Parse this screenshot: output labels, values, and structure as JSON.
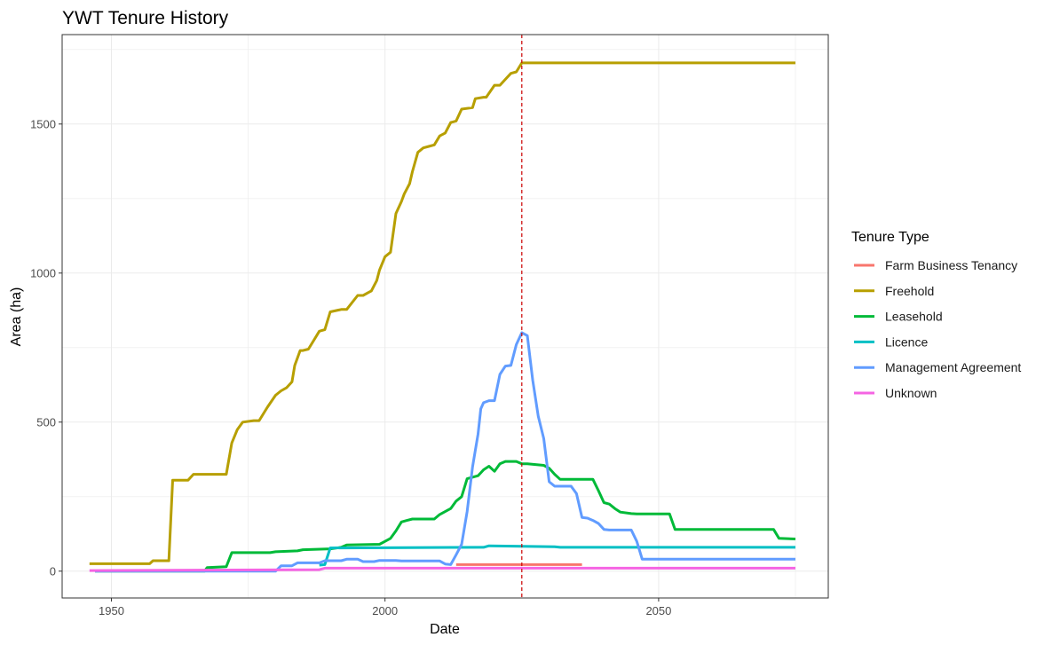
{
  "chart_data": {
    "type": "line",
    "title": "YWT Tenure History",
    "xlabel": "Date",
    "ylabel": "Area (ha)",
    "xlim": [
      1941,
      2081
    ],
    "ylim": [
      -90,
      1800
    ],
    "x_ticks": [
      1950,
      2000,
      2050
    ],
    "y_ticks": [
      0,
      500,
      1000,
      1500
    ],
    "grid": true,
    "legend_title": "Tenure Type",
    "legend_position": "right",
    "reference_line": {
      "x": 2025,
      "color": "#cc0000",
      "style": "dashed"
    },
    "series": [
      {
        "name": "Farm Business Tenancy",
        "color": "#F8766D",
        "step": true,
        "x": [
          2013,
          2036
        ],
        "y": [
          22,
          22
        ]
      },
      {
        "name": "Freehold",
        "color": "#B79F00",
        "step": false,
        "x": [
          1946,
          1957,
          1957.6,
          1960.5,
          1961.2,
          1964,
          1965,
          1971,
          1972,
          1973,
          1974,
          1976,
          1977,
          1978.5,
          1980,
          1981,
          1982,
          1983,
          1983.5,
          1984.5,
          1985,
          1986,
          1987,
          1988,
          1989,
          1990,
          1992,
          1993,
          1995,
          1996,
          1997,
          1997.5,
          1998.5,
          1999,
          2000,
          2001,
          2002,
          2003,
          2003.5,
          2004.5,
          2005,
          2006,
          2007,
          2008,
          2009,
          2010,
          2011,
          2012,
          2013,
          2014,
          2016,
          2016.5,
          2018,
          2018.5,
          2020,
          2021,
          2022,
          2023,
          2024,
          2025,
          2075
        ],
        "y": [
          25,
          25,
          35,
          35,
          305,
          305,
          325,
          325,
          430,
          475,
          500,
          505,
          505,
          550,
          590,
          605,
          615,
          635,
          690,
          740,
          740,
          745,
          775,
          805,
          810,
          870,
          878,
          878,
          925,
          925,
          935,
          940,
          975,
          1010,
          1055,
          1070,
          1200,
          1240,
          1265,
          1300,
          1340,
          1405,
          1420,
          1425,
          1430,
          1460,
          1470,
          1505,
          1510,
          1550,
          1555,
          1585,
          1590,
          1590,
          1630,
          1630,
          1650,
          1670,
          1675,
          1705,
          1705
        ]
      },
      {
        "name": "Leasehold",
        "color": "#00BA38",
        "step": false,
        "x": [
          1947,
          1967,
          1967.5,
          1971,
          1972,
          1979,
          1980,
          1984,
          1985,
          1990,
          1992,
          1993,
          1999,
          2000,
          2001,
          2002,
          2003,
          2004,
          2005,
          2009,
          2010,
          2011,
          2012,
          2013,
          2014,
          2015,
          2017,
          2017.5,
          2018,
          2019,
          2020,
          2021,
          2022,
          2024,
          2025,
          2026,
          2029,
          2030,
          2031,
          2032,
          2038,
          2039,
          2040,
          2041,
          2042,
          2043,
          2045,
          2046,
          2052,
          2053,
          2071,
          2072,
          2075
        ],
        "y": [
          0,
          0,
          12,
          15,
          62,
          62,
          65,
          68,
          72,
          75,
          80,
          88,
          90,
          100,
          110,
          135,
          165,
          170,
          175,
          175,
          190,
          200,
          210,
          235,
          250,
          310,
          320,
          330,
          340,
          352,
          335,
          360,
          368,
          368,
          360,
          360,
          355,
          345,
          325,
          308,
          308,
          270,
          230,
          225,
          210,
          198,
          193,
          192,
          192,
          140,
          140,
          110,
          108
        ]
      },
      {
        "name": "Licence",
        "color": "#00BFC4",
        "step": false,
        "x": [
          1988,
          1989,
          1990,
          2018,
          2019,
          2031,
          2032,
          2075
        ],
        "y": [
          20,
          22,
          78,
          80,
          85,
          82,
          80,
          80
        ]
      },
      {
        "name": "Management Agreement",
        "color": "#619CFF",
        "step": false,
        "x": [
          1947,
          1980,
          1981,
          1983,
          1984,
          1988,
          1989,
          1992,
          1993,
          1995,
          1996,
          1998,
          1999,
          2002,
          2003,
          2010,
          2011,
          2012,
          2013,
          2014,
          2015,
          2016,
          2017,
          2017.5,
          2018,
          2019,
          2020,
          2021,
          2022,
          2023,
          2024,
          2025,
          2026,
          2027,
          2028,
          2029,
          2030,
          2031,
          2034,
          2035,
          2036,
          2037,
          2038,
          2039,
          2040,
          2041,
          2045,
          2046,
          2047,
          2075
        ],
        "y": [
          0,
          0,
          18,
          18,
          28,
          28,
          35,
          35,
          40,
          40,
          32,
          32,
          36,
          36,
          34,
          34,
          24,
          22,
          55,
          90,
          200,
          350,
          460,
          545,
          565,
          572,
          572,
          660,
          688,
          690,
          760,
          800,
          790,
          640,
          520,
          445,
          300,
          285,
          285,
          260,
          180,
          178,
          170,
          160,
          140,
          138,
          138,
          100,
          40,
          40
        ]
      },
      {
        "name": "Unknown",
        "color": "#F564E3",
        "step": false,
        "x": [
          1946,
          1988,
          1989,
          2075
        ],
        "y": [
          2,
          5,
          10,
          10
        ]
      }
    ]
  }
}
